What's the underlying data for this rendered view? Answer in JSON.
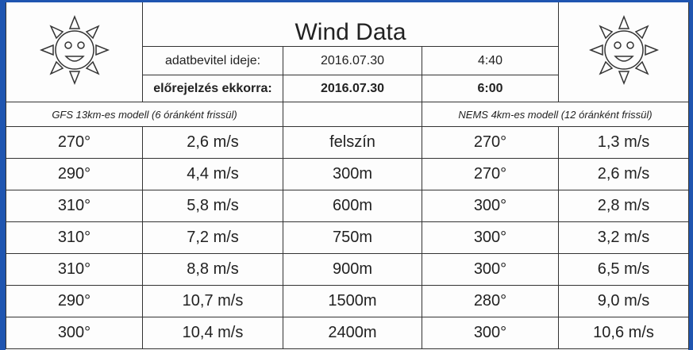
{
  "title": "Wind Data",
  "info": {
    "rows": [
      [
        "adatbevitel ideje:",
        "2016.07.30",
        "4:40"
      ],
      [
        "előrejelzés ekkorra:",
        "2016.07.30",
        "6:00"
      ]
    ]
  },
  "models": {
    "left": "GFS 13km-es modell (6 óránként frissül)",
    "right": "NEMS 4km-es modell (12 óránként frissül)"
  },
  "table": {
    "rows": [
      [
        "270°",
        "2,6 m/s",
        "felszín",
        "270°",
        "1,3 m/s"
      ],
      [
        "290°",
        "4,4 m/s",
        "300m",
        "270°",
        "2,6 m/s"
      ],
      [
        "310°",
        "5,8 m/s",
        "600m",
        "300°",
        "2,8 m/s"
      ],
      [
        "310°",
        "7,2 m/s",
        "750m",
        "300°",
        "3,2 m/s"
      ],
      [
        "310°",
        "8,8 m/s",
        "900m",
        "300°",
        "6,5 m/s"
      ],
      [
        "290°",
        "10,7 m/s",
        "1500m",
        "280°",
        "9,0 m/s"
      ],
      [
        "300°",
        "10,4 m/s",
        "2400m",
        "300°",
        "10,6 m/s"
      ]
    ]
  }
}
